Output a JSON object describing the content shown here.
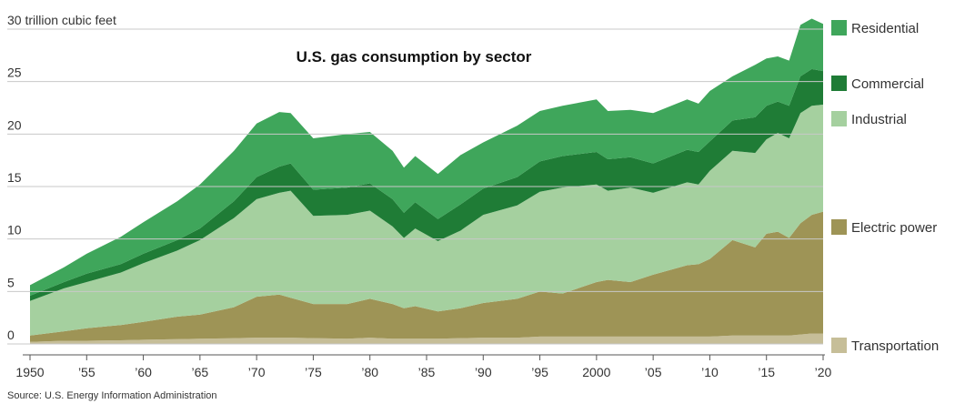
{
  "chart_data": {
    "type": "stacked_area",
    "title": "U.S. gas consumption by sector",
    "source": "Source: U.S. Energy Information Administration",
    "x": [
      1950,
      1953,
      1955,
      1958,
      1960,
      1963,
      1965,
      1968,
      1970,
      1972,
      1973,
      1975,
      1978,
      1980,
      1982,
      1983,
      1984,
      1986,
      1988,
      1990,
      1993,
      1995,
      1997,
      2000,
      2001,
      2003,
      2005,
      2008,
      2009,
      2010,
      2012,
      2014,
      2015,
      2016,
      2017,
      2018,
      2019,
      2020
    ],
    "series": [
      {
        "name": "Transportation",
        "color": "#c6be98",
        "values": [
          0.2,
          0.3,
          0.3,
          0.35,
          0.4,
          0.45,
          0.5,
          0.55,
          0.6,
          0.6,
          0.6,
          0.55,
          0.5,
          0.6,
          0.5,
          0.5,
          0.5,
          0.5,
          0.55,
          0.6,
          0.6,
          0.7,
          0.7,
          0.7,
          0.7,
          0.7,
          0.7,
          0.7,
          0.7,
          0.7,
          0.8,
          0.8,
          0.8,
          0.8,
          0.8,
          0.9,
          1.0,
          1.0
        ]
      },
      {
        "name": "Electric power",
        "color": "#9e9456",
        "values": [
          0.6,
          0.9,
          1.2,
          1.45,
          1.7,
          2.15,
          2.3,
          2.95,
          3.9,
          4.1,
          3.8,
          3.25,
          3.3,
          3.7,
          3.3,
          2.9,
          3.1,
          2.6,
          2.85,
          3.3,
          3.7,
          4.3,
          4.1,
          5.2,
          5.4,
          5.2,
          5.9,
          6.8,
          6.9,
          7.4,
          9.1,
          8.4,
          9.7,
          9.9,
          9.3,
          10.6,
          11.3,
          11.6
        ]
      },
      {
        "name": "Industrial",
        "color": "#a5d09f",
        "values": [
          3.3,
          4.1,
          4.4,
          5.0,
          5.6,
          6.3,
          7.1,
          8.5,
          9.3,
          9.7,
          10.2,
          8.4,
          8.5,
          8.4,
          7.4,
          6.7,
          7.4,
          6.7,
          7.4,
          8.4,
          8.9,
          9.5,
          10.1,
          9.3,
          8.5,
          9.0,
          7.8,
          7.9,
          7.6,
          8.4,
          8.5,
          9.0,
          9.0,
          9.4,
          9.5,
          10.5,
          10.4,
          10.2
        ]
      },
      {
        "name": "Commercial",
        "color": "#1f7c36",
        "values": [
          0.5,
          0.6,
          0.8,
          0.8,
          0.9,
          1.0,
          1.1,
          1.6,
          2.1,
          2.5,
          2.6,
          2.5,
          2.6,
          2.6,
          2.6,
          2.4,
          2.5,
          2.1,
          2.5,
          2.5,
          2.7,
          2.9,
          3.0,
          3.1,
          3.0,
          2.9,
          2.8,
          3.1,
          3.1,
          2.8,
          2.9,
          3.4,
          3.2,
          3.0,
          3.1,
          3.5,
          3.5,
          3.2
        ]
      },
      {
        "name": "Residential",
        "color": "#3fa65b",
        "values": [
          1.0,
          1.4,
          1.9,
          2.6,
          3.0,
          3.7,
          4.2,
          4.8,
          5.1,
          5.2,
          4.8,
          4.9,
          5.1,
          4.9,
          4.6,
          4.3,
          4.4,
          4.3,
          4.7,
          4.4,
          4.9,
          4.8,
          4.8,
          5.0,
          4.6,
          4.5,
          4.8,
          4.8,
          4.6,
          4.8,
          4.2,
          5.0,
          4.5,
          4.3,
          4.3,
          4.9,
          4.8,
          4.5
        ]
      }
    ],
    "xlim": [
      1950,
      2020
    ],
    "xticks": [
      1950,
      {
        "value": 1955,
        "label": "’55"
      },
      {
        "value": 1960,
        "label": "’60"
      },
      {
        "value": 1965,
        "label": "’65"
      },
      {
        "value": 1970,
        "label": "’70"
      },
      {
        "value": 1975,
        "label": "’75"
      },
      {
        "value": 1980,
        "label": "’80"
      },
      {
        "value": 1985,
        "label": "’85"
      },
      {
        "value": 1990,
        "label": "’90"
      },
      {
        "value": 1995,
        "label": "’95"
      },
      2000,
      {
        "value": 2005,
        "label": "’05"
      },
      {
        "value": 2010,
        "label": "’10"
      },
      {
        "value": 2015,
        "label": "’15"
      },
      {
        "value": 2020,
        "label": "’20"
      }
    ],
    "ylim": [
      0,
      30
    ],
    "yticks": [
      0,
      5,
      10,
      15,
      20,
      25,
      {
        "value": 30,
        "label": "30 trillion cubic feet"
      }
    ],
    "grid": true,
    "legend": "right"
  }
}
